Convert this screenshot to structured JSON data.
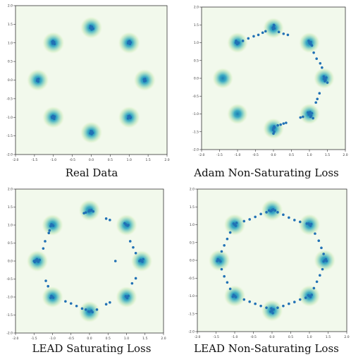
{
  "chart_data": [
    {
      "type": "scatter",
      "title": "Real Data",
      "xlim": [
        -2.0,
        2.0
      ],
      "ylim": [
        -2.0,
        2.0
      ],
      "xticks": [
        "-2.0",
        "-1.5",
        "-1.0",
        "-0.5",
        "0.0",
        "0.5",
        "1.0",
        "1.5",
        "2.0"
      ],
      "yticks": [
        "-2.0",
        "-1.5",
        "-1.0",
        "-0.5",
        "0.0",
        "0.5",
        "1.0",
        "1.5",
        "2.0"
      ],
      "background_modes": [
        [
          0,
          1.41
        ],
        [
          1,
          1
        ],
        [
          1.41,
          0
        ],
        [
          1,
          -1
        ],
        [
          0,
          -1.41
        ],
        [
          -1,
          -1
        ],
        [
          -1.41,
          0
        ],
        [
          -1,
          1
        ]
      ],
      "points": [
        [
          0,
          1.41
        ],
        [
          0.02,
          1.43
        ],
        [
          -0.03,
          1.4
        ],
        [
          0.05,
          1.38
        ],
        [
          -0.02,
          1.45
        ],
        [
          0.01,
          1.36
        ],
        [
          1,
          1
        ],
        [
          0.98,
          1.03
        ],
        [
          1.02,
          0.97
        ],
        [
          1.04,
          1.01
        ],
        [
          0.97,
          0.99
        ],
        [
          1.01,
          1.05
        ],
        [
          1.41,
          0
        ],
        [
          1.39,
          0.02
        ],
        [
          1.43,
          -0.02
        ],
        [
          1.42,
          0.03
        ],
        [
          1.4,
          -0.03
        ],
        [
          1,
          -1
        ],
        [
          0.98,
          -0.97
        ],
        [
          1.03,
          -1.02
        ],
        [
          1.01,
          -0.96
        ],
        [
          0.97,
          -1.03
        ],
        [
          1.04,
          -1.0
        ],
        [
          0,
          -1.41
        ],
        [
          0.02,
          -1.38
        ],
        [
          -0.03,
          -1.43
        ],
        [
          0.01,
          -1.45
        ],
        [
          -0.01,
          -1.37
        ],
        [
          0.04,
          -1.42
        ],
        [
          -1,
          -1
        ],
        [
          -0.97,
          -0.98
        ],
        [
          -1.03,
          -1.02
        ],
        [
          -1.01,
          -0.96
        ],
        [
          -0.98,
          -1.04
        ],
        [
          -1.04,
          -0.99
        ],
        [
          -1.41,
          0
        ],
        [
          -1.39,
          0.03
        ],
        [
          -1.43,
          -0.02
        ],
        [
          -1.4,
          -0.04
        ],
        [
          -1.42,
          0.02
        ],
        [
          -1,
          1
        ],
        [
          -0.98,
          1.02
        ],
        [
          -1.02,
          0.98
        ],
        [
          -1.03,
          1.03
        ],
        [
          -0.97,
          0.97
        ],
        [
          -1.01,
          1.05
        ]
      ]
    },
    {
      "type": "scatter",
      "title": "Adam Non-Saturating Loss",
      "xlim": [
        -2.0,
        2.0
      ],
      "ylim": [
        -2.0,
        2.0
      ],
      "xticks": [
        "-2.0",
        "-1.5",
        "-1.0",
        "-0.5",
        "0.0",
        "0.5",
        "1.0",
        "1.5",
        "2.0"
      ],
      "yticks": [
        "-2.0",
        "-1.5",
        "-1.0",
        "-0.5",
        "0.0",
        "0.5",
        "1.0",
        "1.5",
        "2.0"
      ],
      "background_modes": [
        [
          0,
          1.41
        ],
        [
          1,
          1
        ],
        [
          1.41,
          0
        ],
        [
          1,
          -1
        ],
        [
          0,
          -1.41
        ],
        [
          -1,
          -1
        ],
        [
          -1.41,
          0
        ],
        [
          -1,
          1
        ]
      ],
      "points": [
        [
          -1.02,
          1.02
        ],
        [
          -1.0,
          1.0
        ],
        [
          -0.98,
          0.98
        ],
        [
          -1.04,
          1.05
        ],
        [
          -0.97,
          1.0
        ],
        [
          -1.01,
          0.96
        ],
        [
          -1.05,
          1.0
        ],
        [
          -0.85,
          1.05
        ],
        [
          -0.7,
          1.12
        ],
        [
          -0.55,
          1.18
        ],
        [
          -0.42,
          1.22
        ],
        [
          -0.3,
          1.28
        ],
        [
          -0.22,
          1.32
        ],
        [
          0.0,
          1.44
        ],
        [
          0.02,
          1.48
        ],
        [
          -0.02,
          1.42
        ],
        [
          0.01,
          1.5
        ],
        [
          0.03,
          1.4
        ],
        [
          -0.01,
          1.38
        ],
        [
          0.15,
          1.3
        ],
        [
          0.28,
          1.25
        ],
        [
          0.4,
          1.22
        ],
        [
          0.98,
          1.05
        ],
        [
          1.0,
          1.0
        ],
        [
          1.02,
          0.97
        ],
        [
          1.05,
          0.95
        ],
        [
          1.04,
          1.02
        ],
        [
          1.07,
          0.92
        ],
        [
          1.12,
          0.72
        ],
        [
          1.2,
          0.55
        ],
        [
          1.3,
          0.42
        ],
        [
          1.35,
          0.3
        ],
        [
          1.4,
          0.05
        ],
        [
          1.42,
          0.0
        ],
        [
          1.45,
          -0.05
        ],
        [
          1.43,
          -0.08
        ],
        [
          1.47,
          0.02
        ],
        [
          1.5,
          -0.12
        ],
        [
          1.4,
          -0.02
        ],
        [
          1.28,
          -0.42
        ],
        [
          1.22,
          -0.58
        ],
        [
          1.18,
          -0.68
        ],
        [
          1.02,
          -0.95
        ],
        [
          1.0,
          -1.0
        ],
        [
          0.98,
          -1.02
        ],
        [
          1.05,
          -1.05
        ],
        [
          1.07,
          -0.98
        ],
        [
          1.03,
          -1.08
        ],
        [
          0.96,
          -0.96
        ],
        [
          1.1,
          -1.12
        ],
        [
          0.82,
          -1.08
        ],
        [
          0.75,
          -1.1
        ],
        [
          0.35,
          -1.25
        ],
        [
          0.28,
          -1.27
        ],
        [
          0.2,
          -1.3
        ],
        [
          0.12,
          -1.32
        ],
        [
          0.02,
          -1.35
        ],
        [
          0.0,
          -1.4
        ],
        [
          -0.01,
          -1.45
        ],
        [
          0.02,
          -1.5
        ],
        [
          0.0,
          -1.55
        ],
        [
          0.03,
          -1.38
        ]
      ]
    },
    {
      "type": "scatter",
      "title": "LEAD Saturating Loss",
      "xlim": [
        -2.0,
        2.0
      ],
      "ylim": [
        -2.0,
        2.0
      ],
      "xticks": [
        "-2.0",
        "-1.5",
        "-1.0",
        "-0.5",
        "0.0",
        "0.5",
        "1.0",
        "1.5",
        "2.0"
      ],
      "yticks": [
        "-2.0",
        "-1.5",
        "-1.0",
        "-0.5",
        "0.0",
        "0.5",
        "1.0",
        "1.5",
        "2.0"
      ],
      "background_modes": [
        [
          0,
          1.41
        ],
        [
          1,
          1
        ],
        [
          1.41,
          0
        ],
        [
          1,
          -1
        ],
        [
          0,
          -1.41
        ],
        [
          -1,
          -1
        ],
        [
          -1.41,
          0
        ],
        [
          -1,
          1
        ]
      ],
      "points": [
        [
          0.0,
          1.41
        ],
        [
          0.03,
          1.4
        ],
        [
          -0.02,
          1.38
        ],
        [
          0.05,
          1.42
        ],
        [
          -0.1,
          1.35
        ],
        [
          -0.15,
          1.33
        ],
        [
          0.1,
          1.38
        ],
        [
          0.45,
          1.18
        ],
        [
          0.55,
          1.14
        ],
        [
          1.0,
          1.0
        ],
        [
          0.98,
          1.02
        ],
        [
          1.03,
          0.98
        ],
        [
          0.95,
          1.05
        ],
        [
          1.05,
          1.0
        ],
        [
          1.1,
          0.55
        ],
        [
          1.18,
          0.38
        ],
        [
          1.25,
          0.22
        ],
        [
          1.41,
          0.0
        ],
        [
          1.38,
          0.03
        ],
        [
          1.43,
          -0.02
        ],
        [
          1.45,
          0.05
        ],
        [
          1.35,
          0.0
        ],
        [
          0.7,
          0.0
        ],
        [
          1.25,
          -0.48
        ],
        [
          1.15,
          -0.62
        ],
        [
          1.0,
          -1.0
        ],
        [
          0.98,
          -0.98
        ],
        [
          1.02,
          -1.03
        ],
        [
          1.05,
          -0.97
        ],
        [
          0.55,
          -1.15
        ],
        [
          0.45,
          -1.2
        ],
        [
          0.0,
          -1.41
        ],
        [
          0.05,
          -1.38
        ],
        [
          -0.03,
          -1.4
        ],
        [
          0.08,
          -1.42
        ],
        [
          -0.1,
          -1.35
        ],
        [
          -0.2,
          -1.32
        ],
        [
          0.2,
          -1.35
        ],
        [
          -0.35,
          -1.25
        ],
        [
          -0.5,
          -1.18
        ],
        [
          -0.65,
          -1.12
        ],
        [
          -1.0,
          -1.0
        ],
        [
          -0.98,
          -1.02
        ],
        [
          -1.03,
          -0.97
        ],
        [
          -1.05,
          -1.02
        ],
        [
          -1.12,
          -0.7
        ],
        [
          -1.18,
          -0.55
        ],
        [
          -1.41,
          0.0
        ],
        [
          -1.45,
          0.02
        ],
        [
          -1.38,
          -0.02
        ],
        [
          -1.5,
          0.0
        ],
        [
          -1.42,
          0.05
        ],
        [
          -1.35,
          0.03
        ],
        [
          -1.48,
          -0.03
        ],
        [
          -1.25,
          0.35
        ],
        [
          -1.2,
          0.55
        ],
        [
          -1.0,
          1.0
        ],
        [
          -0.98,
          0.98
        ],
        [
          -1.03,
          1.02
        ],
        [
          -1.05,
          0.97
        ],
        [
          -1.1,
          0.78
        ],
        [
          -1.08,
          0.85
        ]
      ]
    },
    {
      "type": "scatter",
      "title": "LEAD Non-Saturating Loss",
      "xlim": [
        -2.0,
        2.0
      ],
      "ylim": [
        -2.0,
        2.0
      ],
      "xticks": [
        "-2.0",
        "-1.5",
        "-1.0",
        "-0.5",
        "0.0",
        "0.5",
        "1.0",
        "1.5",
        "2.0"
      ],
      "yticks": [
        "-2.0",
        "-1.5",
        "-1.0",
        "-0.5",
        "0.0",
        "0.5",
        "1.0",
        "1.5",
        "2.0"
      ],
      "background_modes": [
        [
          0,
          1.41
        ],
        [
          1,
          1
        ],
        [
          1.41,
          0
        ],
        [
          1,
          -1
        ],
        [
          0,
          -1.41
        ],
        [
          -1,
          -1
        ],
        [
          -1.41,
          0
        ],
        [
          -1,
          1
        ]
      ],
      "points": [
        [
          0.0,
          1.41
        ],
        [
          0.03,
          1.43
        ],
        [
          -0.03,
          1.38
        ],
        [
          0.08,
          1.4
        ],
        [
          -0.08,
          1.4
        ],
        [
          0.15,
          1.35
        ],
        [
          -0.15,
          1.35
        ],
        [
          -0.3,
          1.3
        ],
        [
          -0.45,
          1.22
        ],
        [
          -0.6,
          1.15
        ],
        [
          -0.75,
          1.1
        ],
        [
          0.3,
          1.28
        ],
        [
          0.45,
          1.2
        ],
        [
          0.6,
          1.13
        ],
        [
          0.75,
          1.08
        ],
        [
          1.0,
          1.0
        ],
        [
          0.98,
          1.03
        ],
        [
          1.03,
          0.97
        ],
        [
          1.05,
          1.02
        ],
        [
          0.93,
          1.03
        ],
        [
          1.15,
          0.75
        ],
        [
          1.25,
          0.55
        ],
        [
          1.32,
          0.35
        ],
        [
          1.38,
          0.18
        ],
        [
          1.41,
          0.0
        ],
        [
          1.44,
          0.03
        ],
        [
          1.38,
          -0.03
        ],
        [
          1.46,
          -0.02
        ],
        [
          1.35,
          -0.25
        ],
        [
          1.28,
          -0.42
        ],
        [
          1.2,
          -0.6
        ],
        [
          1.12,
          -0.78
        ],
        [
          1.0,
          -1.0
        ],
        [
          0.97,
          -0.98
        ],
        [
          1.03,
          -1.03
        ],
        [
          1.06,
          -0.97
        ],
        [
          0.9,
          -1.05
        ],
        [
          0.75,
          -1.1
        ],
        [
          0.6,
          -1.17
        ],
        [
          0.45,
          -1.22
        ],
        [
          0.3,
          -1.28
        ],
        [
          0.15,
          -1.33
        ],
        [
          0.0,
          -1.41
        ],
        [
          0.04,
          -1.38
        ],
        [
          -0.04,
          -1.44
        ],
        [
          0.02,
          -1.48
        ],
        [
          -0.02,
          -1.35
        ],
        [
          -0.15,
          -1.33
        ],
        [
          -0.3,
          -1.28
        ],
        [
          -0.45,
          -1.22
        ],
        [
          -0.6,
          -1.16
        ],
        [
          -0.75,
          -1.1
        ],
        [
          -1.0,
          -1.0
        ],
        [
          -0.97,
          -1.03
        ],
        [
          -1.03,
          -0.97
        ],
        [
          -1.05,
          -1.02
        ],
        [
          -1.12,
          -0.8
        ],
        [
          -1.2,
          -0.62
        ],
        [
          -1.28,
          -0.45
        ],
        [
          -1.35,
          -0.25
        ],
        [
          -1.41,
          0.0
        ],
        [
          -1.45,
          0.03
        ],
        [
          -1.38,
          -0.03
        ],
        [
          -1.47,
          -0.02
        ],
        [
          -1.35,
          0.25
        ],
        [
          -1.28,
          0.42
        ],
        [
          -1.2,
          0.6
        ],
        [
          -1.12,
          0.78
        ],
        [
          -1.0,
          1.0
        ],
        [
          -0.97,
          0.97
        ],
        [
          -1.03,
          1.03
        ],
        [
          -0.95,
          1.05
        ]
      ]
    }
  ]
}
